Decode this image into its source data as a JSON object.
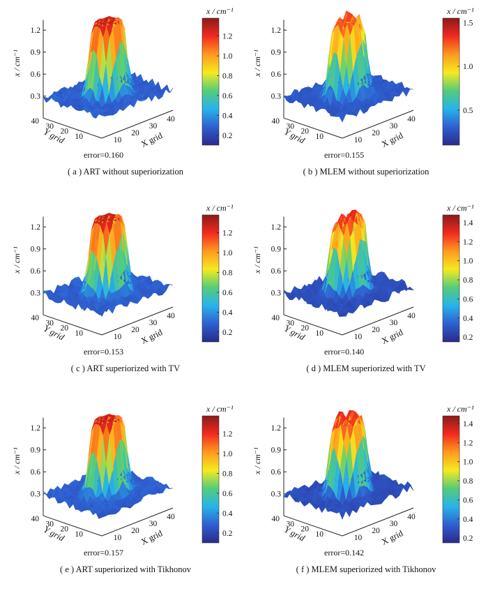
{
  "colorscale": [
    "#2a2a8c",
    "#2f5fd0",
    "#27b4ea",
    "#55cc7a",
    "#f5ea1e",
    "#ff9a1e",
    "#f22a1f",
    "#8b1a1a"
  ],
  "chart_data": [
    {
      "type": "surface3d",
      "caption": "( a )  ART without superiorization",
      "error": "error=0.160",
      "zlabel": "x / cm⁻¹",
      "z_ticks": [
        "1.2",
        "0.9",
        "0.6",
        "0.3"
      ],
      "y_ticks": [
        "40",
        "30",
        "20",
        "10"
      ],
      "x_ticks": [
        "10",
        "20",
        "30",
        "40"
      ],
      "xlabel": "X grid",
      "ylabel": "Y grid",
      "colorbar_unit": "x / cm⁻¹",
      "colorbar_ticks": [
        1.2,
        1.0,
        0.8,
        0.6,
        0.4,
        0.2
      ],
      "colorbar_range": [
        0.1,
        1.38
      ],
      "peak": 1.3,
      "spiky": false
    },
    {
      "type": "surface3d",
      "caption": "( b )  MLEM without superiorization",
      "error": "error=0.155",
      "zlabel": "x / cm⁻¹",
      "z_ticks": [
        "1.2",
        "0.9",
        "0.6",
        "0.3"
      ],
      "y_ticks": [
        "40",
        "30",
        "20",
        "10"
      ],
      "x_ticks": [
        "10",
        "20",
        "30",
        "40"
      ],
      "xlabel": "X grid",
      "ylabel": "Y grid",
      "colorbar_unit": "x / cm⁻¹",
      "colorbar_ticks": [
        1.5,
        1.0,
        0.5
      ],
      "colorbar_range": [
        0.1,
        1.55
      ],
      "peak": 1.3,
      "spiky": true
    },
    {
      "type": "surface3d",
      "caption": "( c )  ART superiorized with TV",
      "error": "error=0.153",
      "zlabel": "x / cm⁻¹",
      "z_ticks": [
        "1.2",
        "0.9",
        "0.6",
        "0.3"
      ],
      "y_ticks": [
        "40",
        "30",
        "20",
        "10"
      ],
      "x_ticks": [
        "10",
        "20",
        "30",
        "40"
      ],
      "xlabel": "X grid",
      "ylabel": "Y grid",
      "colorbar_unit": "x / cm⁻¹",
      "colorbar_ticks": [
        1.2,
        1.0,
        0.8,
        0.6,
        0.4,
        0.2
      ],
      "colorbar_range": [
        0.1,
        1.38
      ],
      "peak": 1.3,
      "spiky": false
    },
    {
      "type": "surface3d",
      "caption": "( d )  MLEM superiorized with TV",
      "error": "error=0.140",
      "zlabel": "x / cm⁻¹",
      "z_ticks": [
        "1.2",
        "0.9",
        "0.6",
        "0.3"
      ],
      "y_ticks": [
        "40",
        "30",
        "20",
        "10"
      ],
      "x_ticks": [
        "10",
        "20",
        "30",
        "40"
      ],
      "xlabel": "X grid",
      "ylabel": "Y grid",
      "colorbar_unit": "x / cm⁻¹",
      "colorbar_ticks": [
        1.4,
        1.2,
        1.0,
        0.8,
        0.6,
        0.4,
        0.2
      ],
      "colorbar_range": [
        0.15,
        1.48
      ],
      "peak": 1.3,
      "spiky": true
    },
    {
      "type": "surface3d",
      "caption": "( e )  ART superiorized with Tikhonov",
      "error": "error=0.157",
      "zlabel": "x / cm⁻¹",
      "z_ticks": [
        "1.2",
        "0.9",
        "0.6",
        "0.3"
      ],
      "y_ticks": [
        "40",
        "30",
        "20",
        "10"
      ],
      "x_ticks": [
        "10",
        "20",
        "30",
        "40"
      ],
      "xlabel": "X grid",
      "ylabel": "Y grid",
      "colorbar_unit": "x / cm⁻¹",
      "colorbar_ticks": [
        1.2,
        1.0,
        0.8,
        0.6,
        0.4,
        0.2
      ],
      "colorbar_range": [
        0.1,
        1.38
      ],
      "peak": 1.3,
      "spiky": false
    },
    {
      "type": "surface3d",
      "caption": "( f )  MLEM superiorized with Tikhonov",
      "error": "error=0.142",
      "zlabel": "x / cm⁻¹",
      "z_ticks": [
        "1.2",
        "0.9",
        "0.6",
        "0.3"
      ],
      "y_ticks": [
        "40",
        "30",
        "20",
        "10"
      ],
      "x_ticks": [
        "10",
        "20",
        "30",
        "40"
      ],
      "xlabel": "X grid",
      "ylabel": "Y grid",
      "colorbar_unit": "x / cm⁻¹",
      "colorbar_ticks": [
        1.4,
        1.2,
        1.0,
        0.8,
        0.6,
        0.4,
        0.2
      ],
      "colorbar_range": [
        0.15,
        1.48
      ],
      "peak": 1.3,
      "spiky": true
    }
  ]
}
